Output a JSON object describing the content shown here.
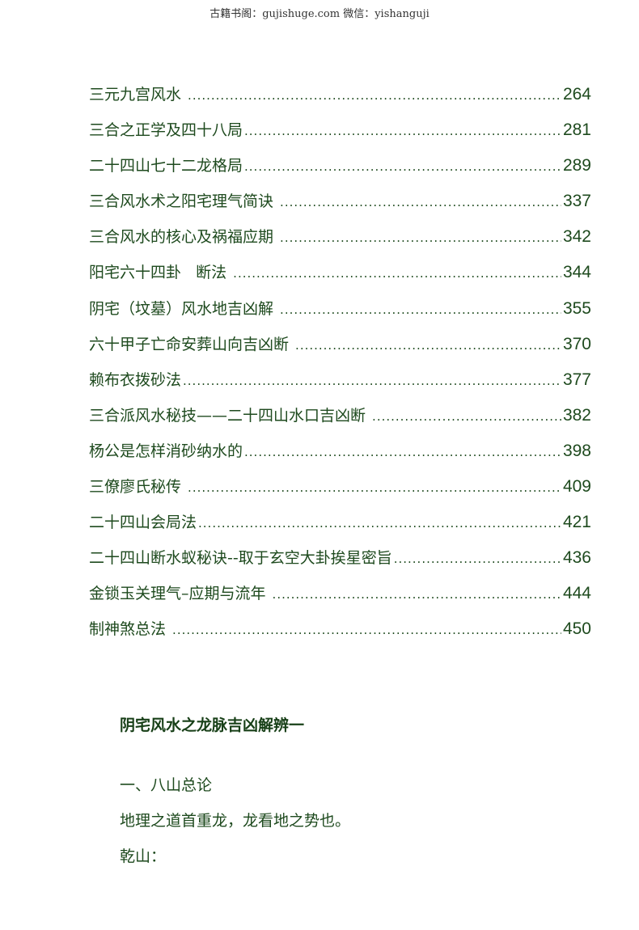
{
  "header": "古籍书阁：gujishuge.com 微信：yishanguji",
  "toc": [
    {
      "title": "三元九宫风水 ",
      "page": "264"
    },
    {
      "title": "三合之正学及四十八局",
      "page": "281"
    },
    {
      "title": "二十四山七十二龙格局",
      "page": "289"
    },
    {
      "title": "三合风水术之阳宅理气简诀 ",
      "page": "337"
    },
    {
      "title": "三合风水的核心及祸福应期 ",
      "page": "342"
    },
    {
      "title": "阳宅六十四卦   断法 ",
      "page": "344"
    },
    {
      "title": "阴宅（坟墓）风水地吉凶解 ",
      "page": "355"
    },
    {
      "title": "六十甲子亡命安葬山向吉凶断 ",
      "page": "370"
    },
    {
      "title": "赖布衣拨砂法",
      "page": "377"
    },
    {
      "title": "三合派风水秘技——二十四山水口吉凶断 ",
      "page": "382"
    },
    {
      "title": "杨公是怎样消砂纳水的",
      "page": "398"
    },
    {
      "title": "三僚廖氏秘传 ",
      "page": "409"
    },
    {
      "title": "二十四山会局法",
      "page": "421"
    },
    {
      "title": "二十四山断水蚁秘诀--取于玄空大卦挨星密旨",
      "page": "436"
    },
    {
      "title": "金锁玉关理气–应期与流年 ",
      "page": "444"
    },
    {
      "title": "制神煞总法 ",
      "page": "450"
    }
  ],
  "section": {
    "heading": "阴宅风水之龙脉吉凶解辨一",
    "subheading": "一、八山总论",
    "paragraph": "地理之道首重龙，龙看地之势也。",
    "item": "乾山："
  }
}
